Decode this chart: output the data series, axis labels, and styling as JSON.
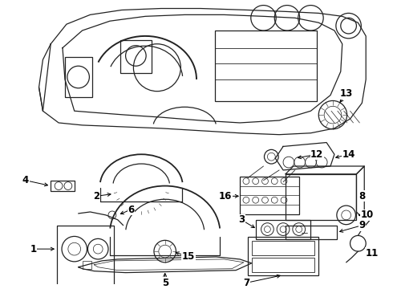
{
  "bg_color": "#ffffff",
  "line_color": "#222222",
  "text_color": "#000000",
  "label_fontsize": 8.5,
  "figsize": [
    4.9,
    3.6
  ],
  "dpi": 100
}
